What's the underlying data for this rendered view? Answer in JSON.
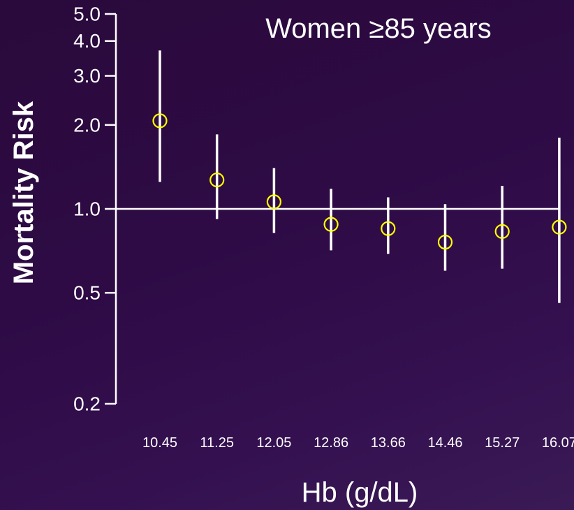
{
  "chart_data": {
    "type": "scatter",
    "title": "Women ≥85 years",
    "xlabel": "Hb (g/dL)",
    "ylabel": "Mortality Risk",
    "yscale": "log",
    "ylim": [
      0.2,
      5.0
    ],
    "yticks": [
      {
        "value": 0.2,
        "label": "0.2"
      },
      {
        "value": 0.5,
        "label": "0.5"
      },
      {
        "value": 1.0,
        "label": "1.0"
      },
      {
        "value": 2.0,
        "label": "2.0"
      },
      {
        "value": 3.0,
        "label": "3.0"
      },
      {
        "value": 4.0,
        "label": "4.0"
      },
      {
        "value": 5.0,
        "label": "5.0"
      }
    ],
    "categories": [
      "10.45",
      "11.25",
      "12.05",
      "12.86",
      "13.66",
      "14.46",
      "15.27",
      "16.07"
    ],
    "values": [
      2.07,
      1.27,
      1.06,
      0.88,
      0.85,
      0.76,
      0.83,
      0.86
    ],
    "ci_lower": [
      1.25,
      0.92,
      0.82,
      0.71,
      0.69,
      0.6,
      0.61,
      0.46
    ],
    "ci_upper": [
      3.7,
      1.85,
      1.4,
      1.18,
      1.1,
      1.04,
      1.21,
      1.8
    ],
    "reference_line": 1.0,
    "grid": false,
    "colors": {
      "marker": "#ffff00",
      "error_bar": "#ffffff",
      "axis": "#ffffff",
      "text": "#ffffff"
    }
  }
}
